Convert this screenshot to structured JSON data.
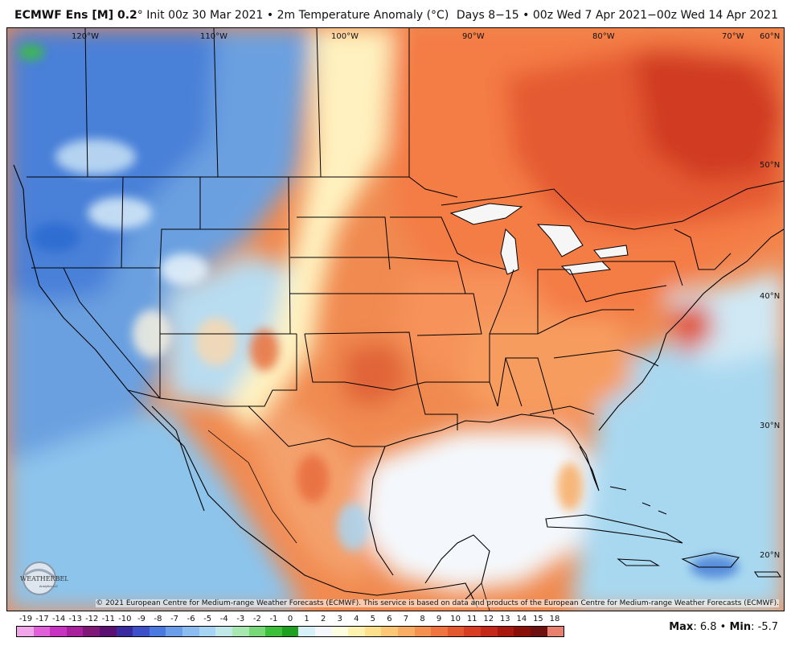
{
  "header": {
    "model": "ECMWF Ens [M] 0.2",
    "deg": "°",
    "title_rest": " Init 00z 30 Mar 2021 • 2m Temperature Anomaly (°C)",
    "valid": "Days 8−15 • 00z Wed 7 Apr 2021−00z Wed 14 Apr 2021"
  },
  "map": {
    "lon_labels": [
      "120°W",
      "110°W",
      "100°W",
      "90°W",
      "80°W",
      "70°W"
    ],
    "lat_labels": [
      "60°N",
      "50°N",
      "40°N",
      "30°N",
      "20°N"
    ],
    "copyright": "© 2021 European Centre for Medium-range Weather Forecasts (ECMWF). This service is based on data and products of the European Centre for Medium-range Weather Forecasts (ECMWF).",
    "logo_text": "WEATHERBELL",
    "logo_sub": "Analytics LLC"
  },
  "colorbar": {
    "labels": [
      "-19",
      "-17",
      "-14",
      "-13",
      "-12",
      "-11",
      "-10",
      "-9",
      "-8",
      "-7",
      "-6",
      "-5",
      "-4",
      "-3",
      "-2",
      "-1",
      "0",
      "1",
      "2",
      "3",
      "4",
      "5",
      "6",
      "7",
      "8",
      "9",
      "10",
      "11",
      "12",
      "13",
      "14",
      "15",
      "18"
    ],
    "colors": [
      "#f0a6e8",
      "#e060d8",
      "#c832c0",
      "#a8209c",
      "#801878",
      "#5a1070",
      "#3a2aa0",
      "#3e50c8",
      "#4a7ae0",
      "#6a9ee8",
      "#8cbcf0",
      "#a8d4f4",
      "#c0e8e8",
      "#a8e8b0",
      "#78d878",
      "#3cc03c",
      "#20a020",
      "#d8f0f8",
      "#f4f8fc",
      "#fffde0",
      "#fff2b0",
      "#fde08c",
      "#fcc878",
      "#f8ac64",
      "#f49050",
      "#ee7440",
      "#e45830",
      "#d83c22",
      "#c42818",
      "#a8180e",
      "#881008",
      "#6c1010",
      "#e88070"
    ]
  },
  "stats": {
    "max_label": "Max",
    "max_value": ": 6.8 • ",
    "min_label": "Min",
    "min_value": ": -5.7"
  }
}
